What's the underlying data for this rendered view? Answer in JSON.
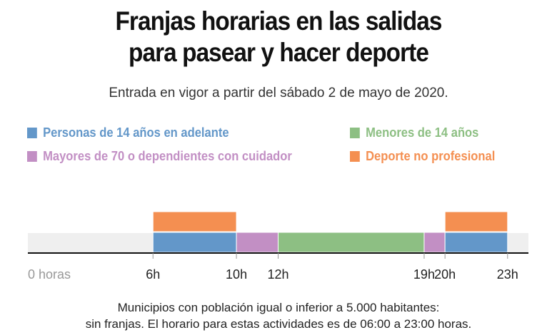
{
  "title_line1": "Franjas horarias en las salidas",
  "title_line2": "para pasear y hacer deporte",
  "subtitle": "Entrada en vigor a partir del sábado 2 de mayo de 2020.",
  "footnote_line1": "Municipios con población igual o inferior a 5.000 habitantes:",
  "footnote_line2": "sin franjas. El horario para estas actividades es de 06:00 a 23:00 horas.",
  "chart_data": {
    "type": "bar",
    "orientation": "horizontal-timeline",
    "xlim": [
      0,
      24
    ],
    "ticks": [
      {
        "value": 0,
        "label": "0 horas"
      },
      {
        "value": 6,
        "label": "6h"
      },
      {
        "value": 10,
        "label": "10h"
      },
      {
        "value": 12,
        "label": "12h"
      },
      {
        "value": 19,
        "label": "19h"
      },
      {
        "value": 20,
        "label": "20h"
      },
      {
        "value": 23,
        "label": "23h"
      }
    ],
    "legend": [
      {
        "name": "Personas de 14 años en adelante",
        "color": "#6397c9"
      },
      {
        "name": "Menores de 14 años",
        "color": "#8dbf83"
      },
      {
        "name": "Mayores de 70 o dependientes con cuidador",
        "color": "#c28fc4"
      },
      {
        "name": "Deporte no profesional",
        "color": "#f48f51"
      }
    ],
    "segments": [
      {
        "series": 0,
        "row": 0,
        "start": 6,
        "end": 10
      },
      {
        "series": 2,
        "row": 0,
        "start": 10,
        "end": 12
      },
      {
        "series": 1,
        "row": 0,
        "start": 12,
        "end": 19
      },
      {
        "series": 2,
        "row": 0,
        "start": 19,
        "end": 20
      },
      {
        "series": 0,
        "row": 0,
        "start": 20,
        "end": 23
      },
      {
        "series": 3,
        "row": 1,
        "start": 6,
        "end": 10
      },
      {
        "series": 3,
        "row": 1,
        "start": 20,
        "end": 23
      }
    ]
  }
}
